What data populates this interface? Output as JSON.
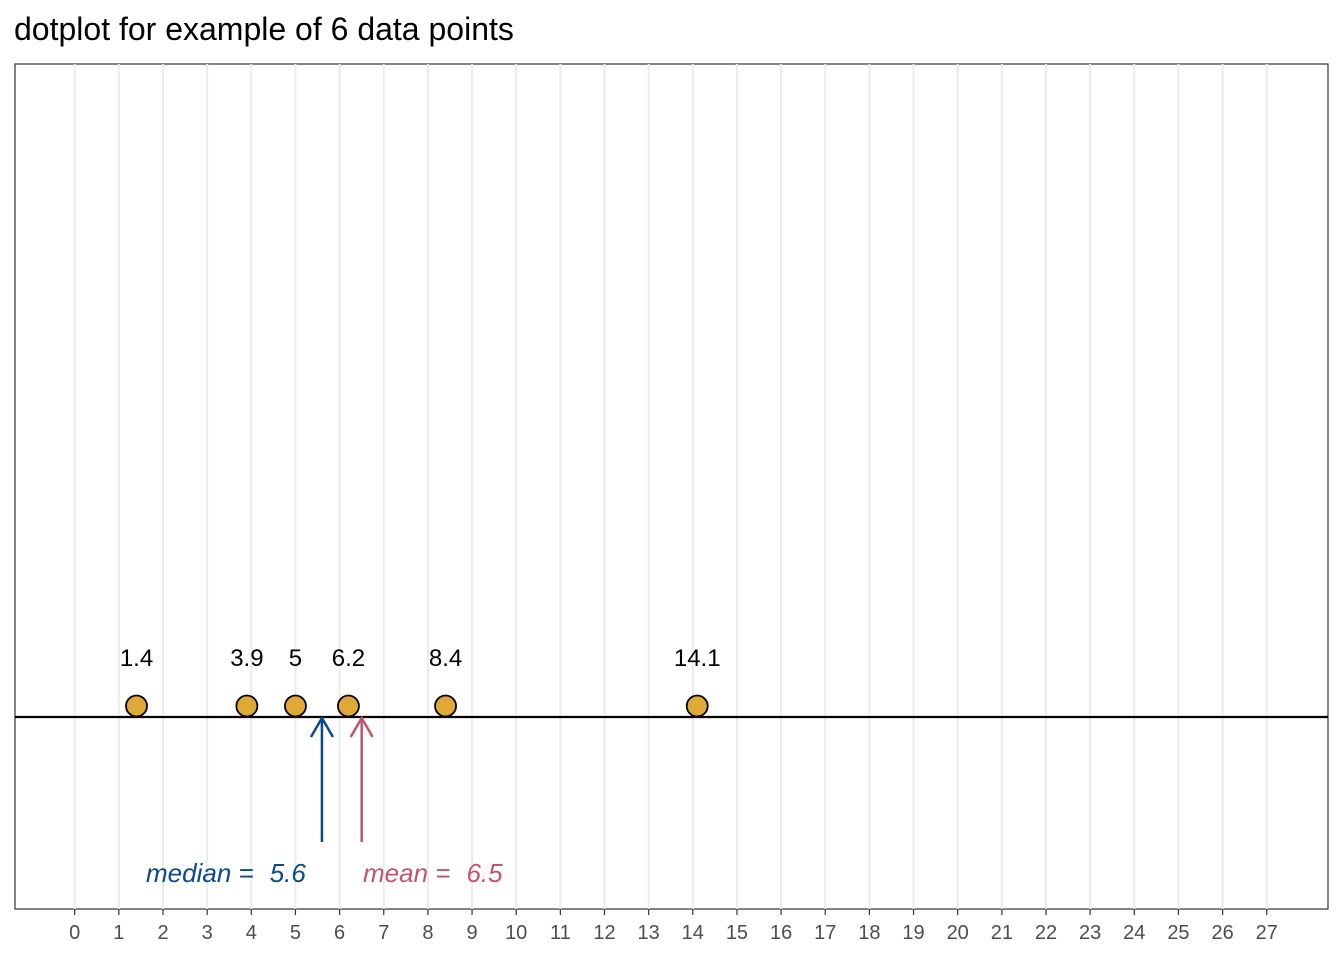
{
  "title": "dotplot for example of 6 data points",
  "chart_data": {
    "type": "scatter",
    "title": "dotplot for example of 6 data points",
    "xlabel": "",
    "ylabel": "",
    "xlim": [
      0,
      27
    ],
    "x_ticks": [
      "0",
      "1",
      "2",
      "3",
      "4",
      "5",
      "6",
      "7",
      "8",
      "9",
      "10",
      "11",
      "12",
      "13",
      "14",
      "15",
      "16",
      "17",
      "18",
      "19",
      "20",
      "21",
      "22",
      "23",
      "24",
      "25",
      "26",
      "27"
    ],
    "grid": true,
    "points": [
      {
        "x": 1.4,
        "label": "1.4"
      },
      {
        "x": 3.9,
        "label": "3.9"
      },
      {
        "x": 5.0,
        "label": "5"
      },
      {
        "x": 6.2,
        "label": "6.2"
      },
      {
        "x": 8.4,
        "label": "8.4"
      },
      {
        "x": 14.1,
        "label": "14.1"
      }
    ],
    "annotations": {
      "median": {
        "value": 5.6,
        "label": "median =",
        "value_text": "5.6",
        "color": "#0a4a8a"
      },
      "mean": {
        "value": 6.5,
        "label": "mean =",
        "value_text": "6.5",
        "color": "#c0566b"
      }
    },
    "point_color": "#e0a935"
  }
}
